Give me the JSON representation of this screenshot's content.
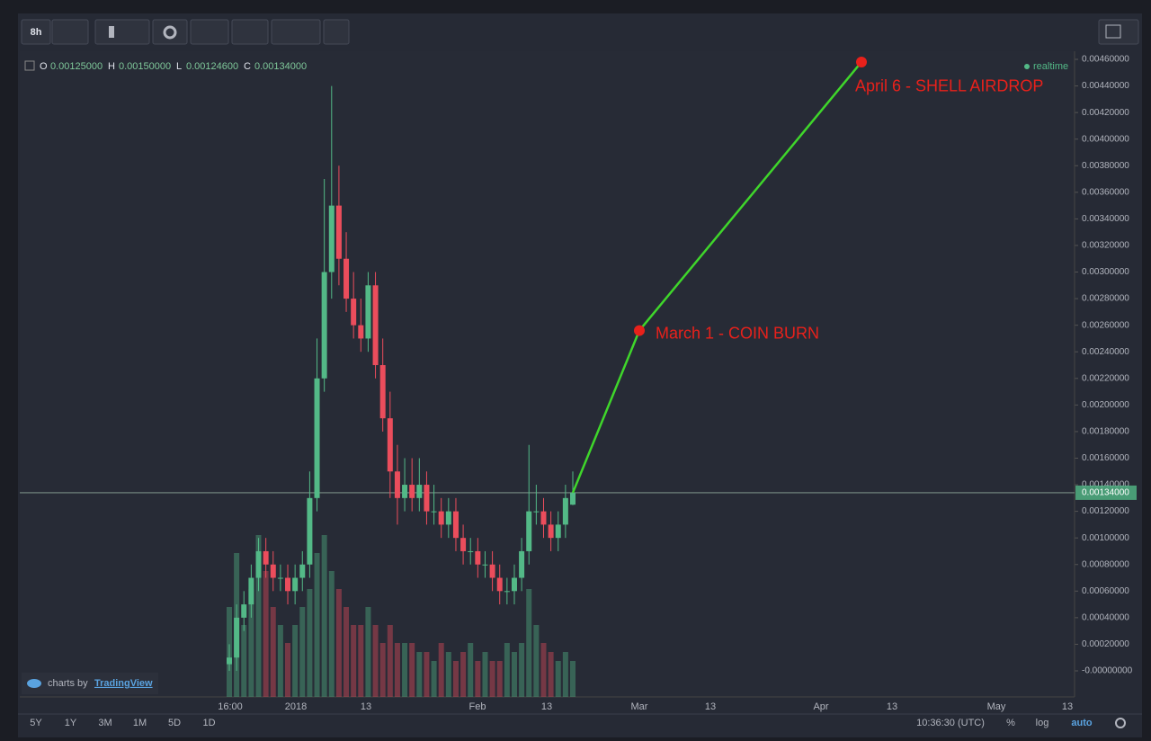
{
  "toolbar": {
    "interval": "8h"
  },
  "legend": {
    "o_label": "O",
    "o": "0.00125000",
    "h_label": "H",
    "h": "0.00150000",
    "l_label": "L",
    "l": "0.00124600",
    "c_label": "C",
    "c": "0.00134000",
    "status": "realtime"
  },
  "branding": {
    "prefix": "charts by",
    "name": "TradingView"
  },
  "chart_data": {
    "type": "candlestick",
    "up_color": "#53b987",
    "down_color": "#eb4d5c",
    "open": [
      5e-05,
      0.0001,
      0.0004,
      0.0005,
      0.0007,
      0.0009,
      0.0008,
      0.0007,
      0.0007,
      0.0006,
      0.0007,
      0.0008,
      0.0013,
      0.0022,
      0.003,
      0.0035,
      0.0031,
      0.0028,
      0.0026,
      0.0025,
      0.0029,
      0.0023,
      0.0019,
      0.0015,
      0.0013,
      0.0014,
      0.0013,
      0.0014,
      0.0012,
      0.0012,
      0.0011,
      0.0012,
      0.001,
      0.0009,
      0.0009,
      0.0008,
      0.0008,
      0.0007,
      0.0006,
      0.0006,
      0.0007,
      0.0009,
      0.0012,
      0.0012,
      0.0011,
      0.001,
      0.0011,
      0.00125
    ],
    "high": [
      0.0002,
      0.0005,
      0.0006,
      0.0008,
      0.001,
      0.001,
      0.0009,
      0.0008,
      0.0008,
      0.0008,
      0.0009,
      0.0015,
      0.0025,
      0.0037,
      0.0044,
      0.0038,
      0.0033,
      0.003,
      0.0028,
      0.003,
      0.003,
      0.0025,
      0.0021,
      0.0017,
      0.0016,
      0.0016,
      0.0016,
      0.0015,
      0.0014,
      0.0013,
      0.0013,
      0.0013,
      0.0011,
      0.001,
      0.001,
      0.0009,
      0.0009,
      0.0008,
      0.0007,
      0.0008,
      0.001,
      0.0017,
      0.0014,
      0.0013,
      0.0012,
      0.0012,
      0.0014,
      0.0015
    ],
    "low": [
      0,
      0,
      0.0003,
      0.0004,
      0.0006,
      0.0007,
      0.0006,
      0.0006,
      0.0005,
      0.0005,
      0.0006,
      0.0007,
      0.0012,
      0.0021,
      0.0028,
      0.0029,
      0.0027,
      0.0025,
      0.0024,
      0.0024,
      0.0022,
      0.0018,
      0.0013,
      0.0011,
      0.0012,
      0.0012,
      0.0012,
      0.0011,
      0.0011,
      0.001,
      0.001,
      0.0009,
      0.0008,
      0.0008,
      0.0007,
      0.0007,
      0.0006,
      0.0005,
      0.0005,
      0.0005,
      0.0006,
      0.0008,
      0.0011,
      0.001,
      0.0009,
      0.0009,
      0.001,
      0.001246
    ],
    "close": [
      0.0001,
      0.0004,
      0.0005,
      0.0007,
      0.0009,
      0.0008,
      0.0007,
      0.0007,
      0.0006,
      0.0007,
      0.0008,
      0.0013,
      0.0022,
      0.003,
      0.0035,
      0.0031,
      0.0028,
      0.0026,
      0.0025,
      0.0029,
      0.0023,
      0.0019,
      0.0015,
      0.0013,
      0.0014,
      0.0013,
      0.0014,
      0.0012,
      0.0012,
      0.0011,
      0.0012,
      0.001,
      0.0009,
      0.0009,
      0.0008,
      0.0008,
      0.0007,
      0.0006,
      0.0006,
      0.0007,
      0.0009,
      0.0012,
      0.0012,
      0.0011,
      0.001,
      0.0011,
      0.0013,
      0.00134
    ],
    "volume": [
      50,
      80,
      40,
      60,
      90,
      70,
      50,
      40,
      30,
      40,
      50,
      60,
      80,
      90,
      70,
      60,
      50,
      40,
      40,
      50,
      40,
      30,
      40,
      30,
      30,
      30,
      25,
      25,
      20,
      30,
      25,
      20,
      25,
      30,
      20,
      25,
      20,
      20,
      30,
      25,
      30,
      60,
      40,
      30,
      25,
      20,
      25,
      20
    ],
    "ylim": [
      0,
      0.0046
    ],
    "yticks": [
      {
        "value": 0.0046,
        "label": "0.00460000"
      },
      {
        "value": 0.0044,
        "label": "0.00440000"
      },
      {
        "value": 0.0042,
        "label": "0.00420000"
      },
      {
        "value": 0.004,
        "label": "0.00400000"
      },
      {
        "value": 0.0038,
        "label": "0.00380000"
      },
      {
        "value": 0.0036,
        "label": "0.00360000"
      },
      {
        "value": 0.0034,
        "label": "0.00340000"
      },
      {
        "value": 0.0032,
        "label": "0.00320000"
      },
      {
        "value": 0.003,
        "label": "0.00300000"
      },
      {
        "value": 0.0028,
        "label": "0.00280000"
      },
      {
        "value": 0.0026,
        "label": "0.00260000"
      },
      {
        "value": 0.0024,
        "label": "0.00240000"
      },
      {
        "value": 0.0022,
        "label": "0.00220000"
      },
      {
        "value": 0.002,
        "label": "0.00200000"
      },
      {
        "value": 0.0018,
        "label": "0.00180000"
      },
      {
        "value": 0.0016,
        "label": "0.00160000"
      },
      {
        "value": 0.0014,
        "label": "0.00140000"
      },
      {
        "value": 0.0012,
        "label": "0.00120000"
      },
      {
        "value": 0.001,
        "label": "0.00100000"
      },
      {
        "value": 0.0008,
        "label": "0.00080000"
      },
      {
        "value": 0.0006,
        "label": "0.00060000"
      },
      {
        "value": 0.0004,
        "label": "0.00040000"
      },
      {
        "value": 0.0002,
        "label": "0.00020000"
      },
      {
        "value": 0,
        "label": "-0.00000000"
      }
    ],
    "xtick_labels": [
      "16:00",
      "2018",
      "13",
      "Feb",
      "13",
      "Mar",
      "13",
      "Apr",
      "13",
      "May",
      "13"
    ],
    "last_price": {
      "value": 0.00134,
      "label": "0.00134000"
    },
    "projection": {
      "color": "#3fd62b",
      "point_color": "#e8211b",
      "values": [
        0.00134,
        0.00256,
        0.00458
      ],
      "labels": [
        null,
        "March 1 - COIN BURN",
        "April 6 - SHELL AIRDROP"
      ]
    }
  },
  "bottom_bar": {
    "ranges": [
      "5Y",
      "1Y",
      "3M",
      "1M",
      "5D",
      "1D"
    ],
    "clock": "10:36:30 (UTC)",
    "percent": "%",
    "log": "log",
    "auto": "auto"
  }
}
